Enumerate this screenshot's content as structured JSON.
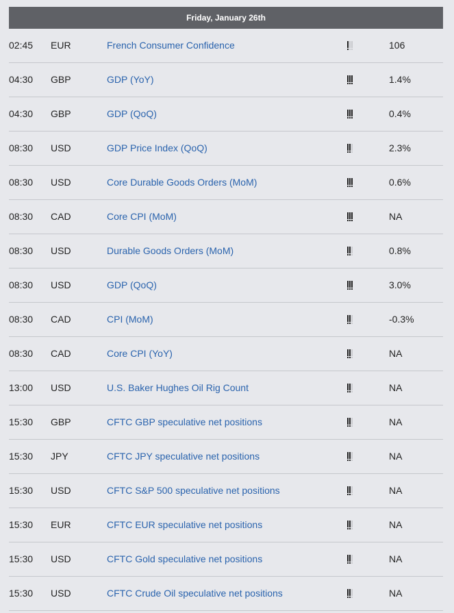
{
  "header": {
    "date": "Friday, January 26th"
  },
  "rows": [
    {
      "time": "02:45",
      "currency": "EUR",
      "event": "French Consumer Confidence",
      "impact": 1,
      "actual": "106"
    },
    {
      "time": "04:30",
      "currency": "GBP",
      "event": "GDP (YoY)",
      "impact": 3,
      "actual": "1.4%"
    },
    {
      "time": "04:30",
      "currency": "GBP",
      "event": "GDP (QoQ)",
      "impact": 3,
      "actual": "0.4%"
    },
    {
      "time": "08:30",
      "currency": "USD",
      "event": "GDP Price Index (QoQ)",
      "impact": 2,
      "actual": "2.3%"
    },
    {
      "time": "08:30",
      "currency": "USD",
      "event": "Core Durable Goods Orders (MoM)",
      "impact": 3,
      "actual": "0.6%"
    },
    {
      "time": "08:30",
      "currency": "CAD",
      "event": "Core CPI (MoM)",
      "impact": 3,
      "actual": "NA"
    },
    {
      "time": "08:30",
      "currency": "USD",
      "event": "Durable Goods Orders (MoM)",
      "impact": 2,
      "actual": "0.8%"
    },
    {
      "time": "08:30",
      "currency": "USD",
      "event": "GDP (QoQ)",
      "impact": 3,
      "actual": "3.0%"
    },
    {
      "time": "08:30",
      "currency": "CAD",
      "event": "CPI (MoM)",
      "impact": 2,
      "actual": "-0.3%"
    },
    {
      "time": "08:30",
      "currency": "CAD",
      "event": "Core CPI (YoY)",
      "impact": 2,
      "actual": "NA"
    },
    {
      "time": "13:00",
      "currency": "USD",
      "event": "U.S. Baker Hughes Oil Rig Count",
      "impact": 2,
      "actual": "NA"
    },
    {
      "time": "15:30",
      "currency": "GBP",
      "event": "CFTC GBP speculative net positions",
      "impact": 2,
      "actual": "NA"
    },
    {
      "time": "15:30",
      "currency": "JPY",
      "event": "CFTC JPY speculative net positions",
      "impact": 2,
      "actual": "NA"
    },
    {
      "time": "15:30",
      "currency": "USD",
      "event": "CFTC S&P 500 speculative net positions",
      "impact": 2,
      "actual": "NA"
    },
    {
      "time": "15:30",
      "currency": "EUR",
      "event": "CFTC EUR speculative net positions",
      "impact": 2,
      "actual": "NA"
    },
    {
      "time": "15:30",
      "currency": "USD",
      "event": "CFTC Gold speculative net positions",
      "impact": 2,
      "actual": "NA"
    },
    {
      "time": "15:30",
      "currency": "USD",
      "event": "CFTC Crude Oil speculative net positions",
      "impact": 2,
      "actual": "NA"
    }
  ],
  "colors": {
    "header_bg": "#5f6166",
    "event_link": "#2a63ad",
    "page_bg": "#e7e8ec"
  }
}
